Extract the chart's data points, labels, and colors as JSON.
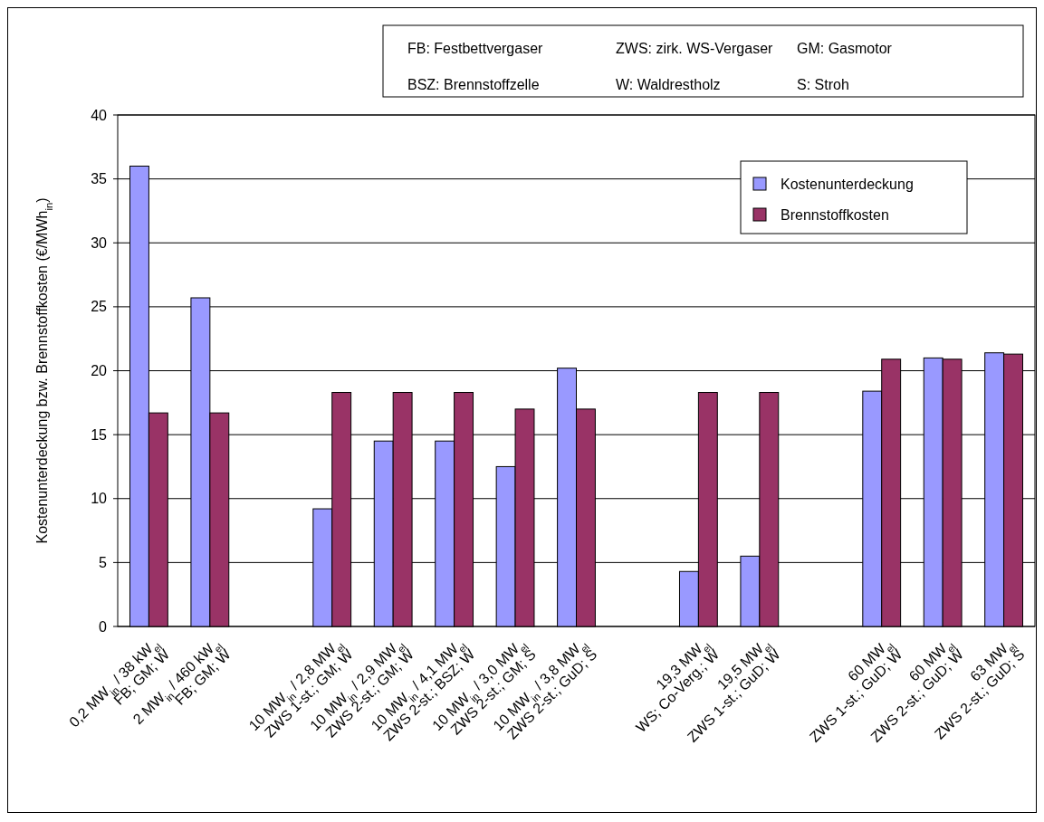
{
  "chart_data": {
    "type": "bar",
    "ylabel": "Kostenunterdeckung bzw. Brennstoffkosten (€/MWh$_{in}$)",
    "categories": [
      "0,2 MW$_{in}$ / 38 kW$_{el}$\nFB; GM; W",
      "2 MW$_{in}$ / 460 kW$_{el}$\nFB; GM; W",
      null,
      "10 MW$_{in}$ / 2,8 MW$_{el}$\nZWS 1-st.; GM; W",
      "10 MW$_{in}$ / 2,9 MW$_{el}$\nZWS 2-st.; GM; W",
      "10 MW$_{in}$ / 4,1 MW$_{el}$\nZWS 2-st.; BSZ; W",
      "10 MW$_{in}$ / 3,0 MW$_{el}$\nZWS 2-st.; GM; S",
      "10 MW$_{in}$ / 3,8 MW$_{el}$\nZWS 2-st.; GuD; S",
      null,
      "19,3 MW$_{el}$\nWS; Co-Verg.; W",
      "19,5 MW$_{el}$\nZWS 1-st.; GuD; W",
      null,
      "60 MW$_{el}$\nZWS 1-st.; GuD; W",
      "60 MW$_{el}$\nZWS 2-st.; GuD; W",
      "63 MW$_{el}$\nZWS 2-st.; GuD; S"
    ],
    "series": [
      {
        "name": "Kostenunterdeckung",
        "color": "#9999ff",
        "values": [
          36,
          25.7,
          null,
          9.2,
          14.5,
          14.5,
          12.5,
          20.2,
          null,
          4.3,
          5.5,
          null,
          18.4,
          21,
          21.4
        ]
      },
      {
        "name": "Brennstoffkosten",
        "color": "#993366",
        "values": [
          16.7,
          16.7,
          null,
          18.3,
          18.3,
          18.3,
          17,
          17,
          null,
          18.3,
          18.3,
          null,
          20.9,
          20.9,
          21.3
        ]
      }
    ],
    "ylim": [
      0,
      40
    ],
    "yticks": [
      0,
      5,
      10,
      15,
      20,
      25,
      30,
      35,
      40
    ],
    "grid": "y",
    "legend": "top right",
    "annotations": [
      "FB: Festbettvergaser",
      "ZWS: zirk. WS-Vergaser",
      "GM: Gasmotor",
      "BSZ: Brennstoffzelle",
      "W: Waldrestholz",
      "S: Stroh"
    ]
  }
}
